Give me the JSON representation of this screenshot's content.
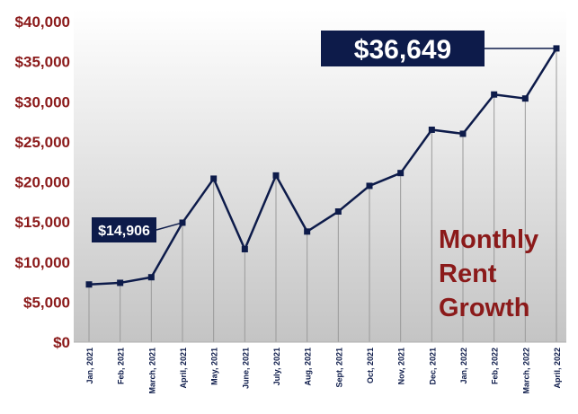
{
  "chart_data": {
    "type": "line",
    "categories": [
      "Jan, 2021",
      "Feb, 2021",
      "March, 2021",
      "April, 2021",
      "May, 2021",
      "June, 2021",
      "July, 2021",
      "Aug, 2021",
      "Sept, 2021",
      "Oct, 2021",
      "Nov, 2021",
      "Dec, 2021",
      "Jan, 2022",
      "Feb, 2022",
      "March, 2022",
      "April, 2022"
    ],
    "values": [
      7200,
      7400,
      8100,
      14906,
      20400,
      11600,
      20800,
      13800,
      16300,
      19500,
      21100,
      26500,
      26000,
      30900,
      30400,
      36649
    ],
    "ylim": [
      0,
      40000
    ],
    "yticks": [
      0,
      5000,
      10000,
      15000,
      20000,
      25000,
      30000,
      35000,
      40000
    ],
    "ytick_labels": [
      "$0",
      "$5,000",
      "$10,000",
      "$15,000",
      "$20,000",
      "$25,000",
      "$30,000",
      "$35,000",
      "$40,000"
    ],
    "annotations": [
      {
        "label": "$14,906",
        "point_index": 3,
        "size": "small"
      },
      {
        "label": "$36,649",
        "point_index": 15,
        "size": "large"
      }
    ],
    "overlay_text": [
      "Monthly",
      "Rent",
      "Growth"
    ],
    "colors": {
      "line": "#0d1b4a",
      "axis_label": "#8b1a1a",
      "callout_bg": "#0d1b4a",
      "callout_text": "#ffffff",
      "overlay_text": "#8b1a1a",
      "drop_lines": "#9a9a9a"
    },
    "grid": false
  }
}
